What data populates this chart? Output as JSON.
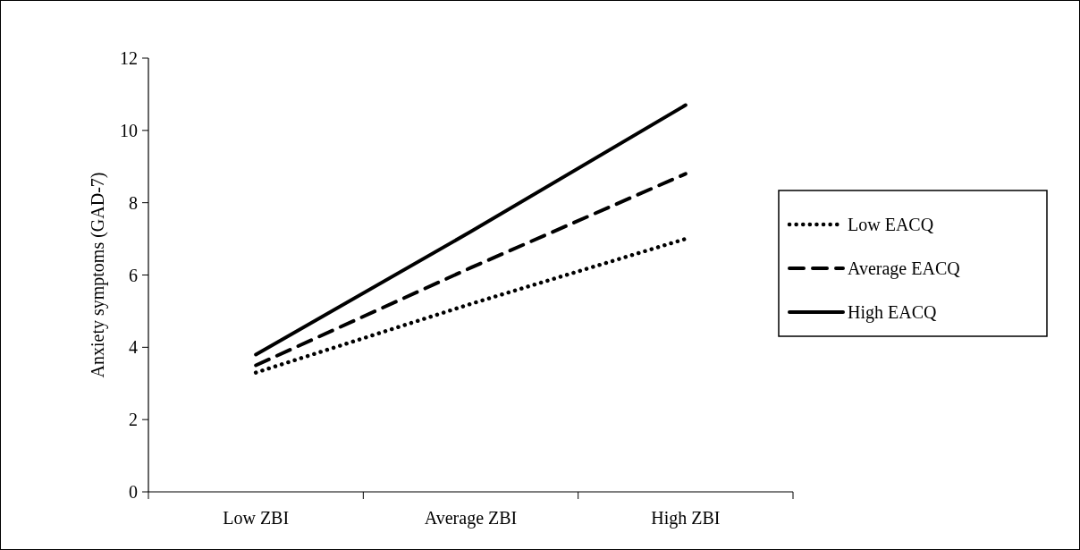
{
  "chart_data": {
    "type": "line",
    "ylabel": "Anxiety symptoms (GAD-7)",
    "categories": [
      "Low ZBI",
      "Average ZBI",
      "High ZBI"
    ],
    "series": [
      {
        "name": "Low EACQ",
        "color": "#000000",
        "line_style": "dotted",
        "values": [
          3.3,
          5.2,
          7.0
        ]
      },
      {
        "name": "Average EACQ",
        "color": "#000000",
        "line_style": "dashed",
        "values": [
          3.5,
          6.2,
          8.8
        ]
      },
      {
        "name": "High EACQ",
        "color": "#000000",
        "line_style": "solid",
        "values": [
          3.8,
          7.2,
          10.7
        ]
      }
    ],
    "ylim": [
      0,
      12
    ],
    "yticks": [
      0,
      2,
      4,
      6,
      8,
      10,
      12
    ],
    "legend": "right",
    "marker": "none",
    "grid": false
  }
}
